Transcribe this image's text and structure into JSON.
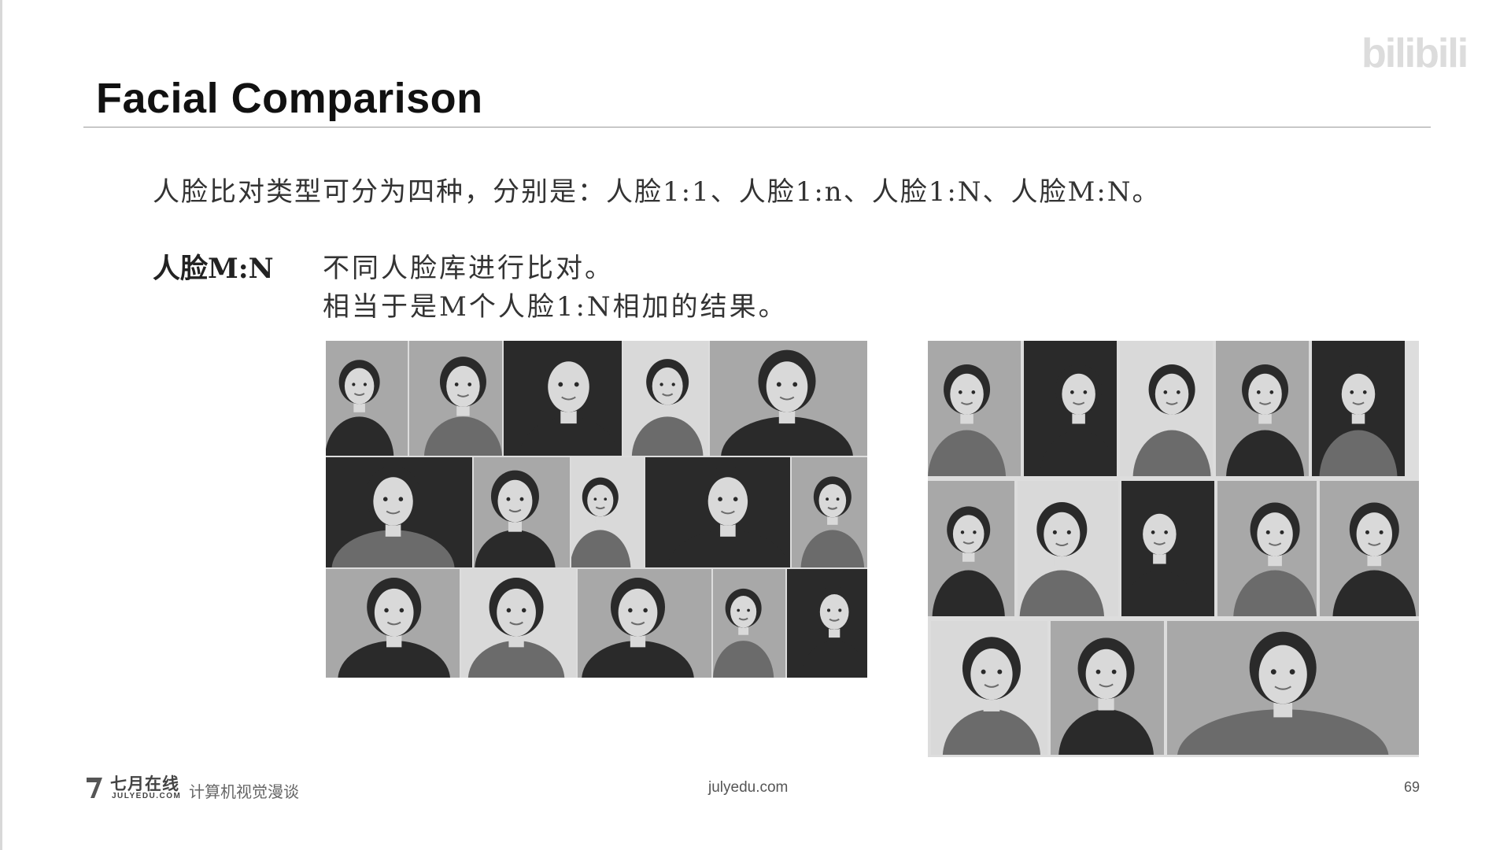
{
  "slide": {
    "title": "Facial Comparison",
    "intro": "人脸比对类型可分为四种，分别是：人脸1:1、人脸1:n、人脸1:N、人脸M:N。",
    "section_label": "人脸M:N",
    "description_line1": "不同人脸库进行比对。",
    "description_line2": "相当于是M个人脸1:N相加的结果。"
  },
  "watermark": {
    "text": "bilibili"
  },
  "gallery_left": {
    "photo_count": 15
  },
  "gallery_right": {
    "photo_count": 13
  },
  "footer": {
    "logo_cn": "七月在线",
    "logo_en": "JULYEDU.COM",
    "subtitle": "计算机视觉漫谈",
    "url": "julyedu.com",
    "page_number": "69"
  },
  "colors": {
    "text": "#333333",
    "rule": "#999999",
    "photo_tones": [
      "#2a2a2a",
      "#6b6b6b",
      "#a8a8a8",
      "#d9d9d9"
    ]
  },
  "icons": [
    "julyedu-logo-icon",
    "bilibili-watermark-icon"
  ]
}
